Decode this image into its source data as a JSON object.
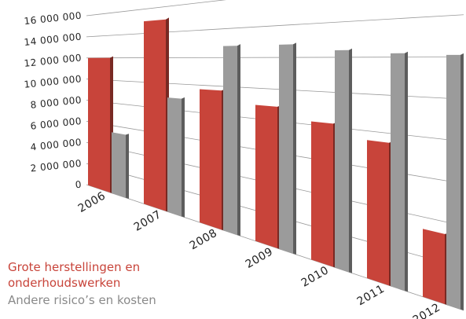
{
  "chart_data": {
    "type": "bar",
    "categories": [
      "2006",
      "2007",
      "2008",
      "2009",
      "2010",
      "2011",
      "2012"
    ],
    "series": [
      {
        "name": "Grote herstellingen en onderhoudswerken",
        "color": "#c8443a",
        "values": [
          12000000,
          15000000,
          9700000,
          8900000,
          8200000,
          7500000,
          3400000
        ]
      },
      {
        "name": "Andere risico’s en kosten",
        "color": "#9b9b9b",
        "values": [
          5400000,
          8900000,
          12800000,
          12800000,
          12400000,
          12200000,
          12100000
        ]
      }
    ],
    "ylim": [
      0,
      16000000
    ],
    "yticks": [
      0,
      {
        "value": 2000000,
        "label": "2 000 000"
      },
      {
        "value": 4000000,
        "label": "4 000 000"
      },
      {
        "value": 6000000,
        "label": "6 000 000"
      },
      {
        "value": 8000000,
        "label": "8 000 000"
      },
      {
        "value": 10000000,
        "label": "10 000 000"
      },
      {
        "value": 12000000,
        "label": "12 000 000"
      },
      {
        "value": 14000000,
        "label": "14 000 000"
      },
      {
        "value": 16000000,
        "label": "16 000 000"
      }
    ],
    "grid": true
  }
}
